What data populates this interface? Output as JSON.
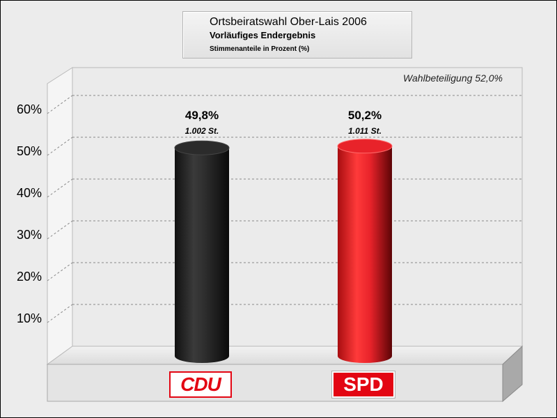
{
  "header": {
    "title": "Ortsbeiratswahl Ober-Lais 2006",
    "subtitle": "Vorläufiges Endergebnis",
    "note": "Stimmenanteile in Prozent (%)"
  },
  "turnout_label": "Wahlbeteiligung 52,0%",
  "colors": {
    "cdu": "#2b2b2b",
    "spd": "#e8232a",
    "background": "#ececec"
  },
  "chart_data": {
    "type": "bar",
    "title": "Ortsbeiratswahl Ober-Lais 2006",
    "subtitle": "Vorläufiges Endergebnis",
    "ylabel": "",
    "ylim": [
      0,
      65
    ],
    "y_ticks": [
      "10%",
      "20%",
      "30%",
      "40%",
      "50%",
      "60%"
    ],
    "y_tick_values": [
      10,
      20,
      30,
      40,
      50,
      60
    ],
    "grid": true,
    "categories": [
      "CDU",
      "SPD"
    ],
    "values": [
      49.8,
      50.2
    ],
    "value_labels": [
      "49,8%",
      "50,2%"
    ],
    "votes_labels": [
      "1.002 St.",
      "1.011 St."
    ],
    "annotation": "Wahlbeteiligung 52,0%"
  }
}
